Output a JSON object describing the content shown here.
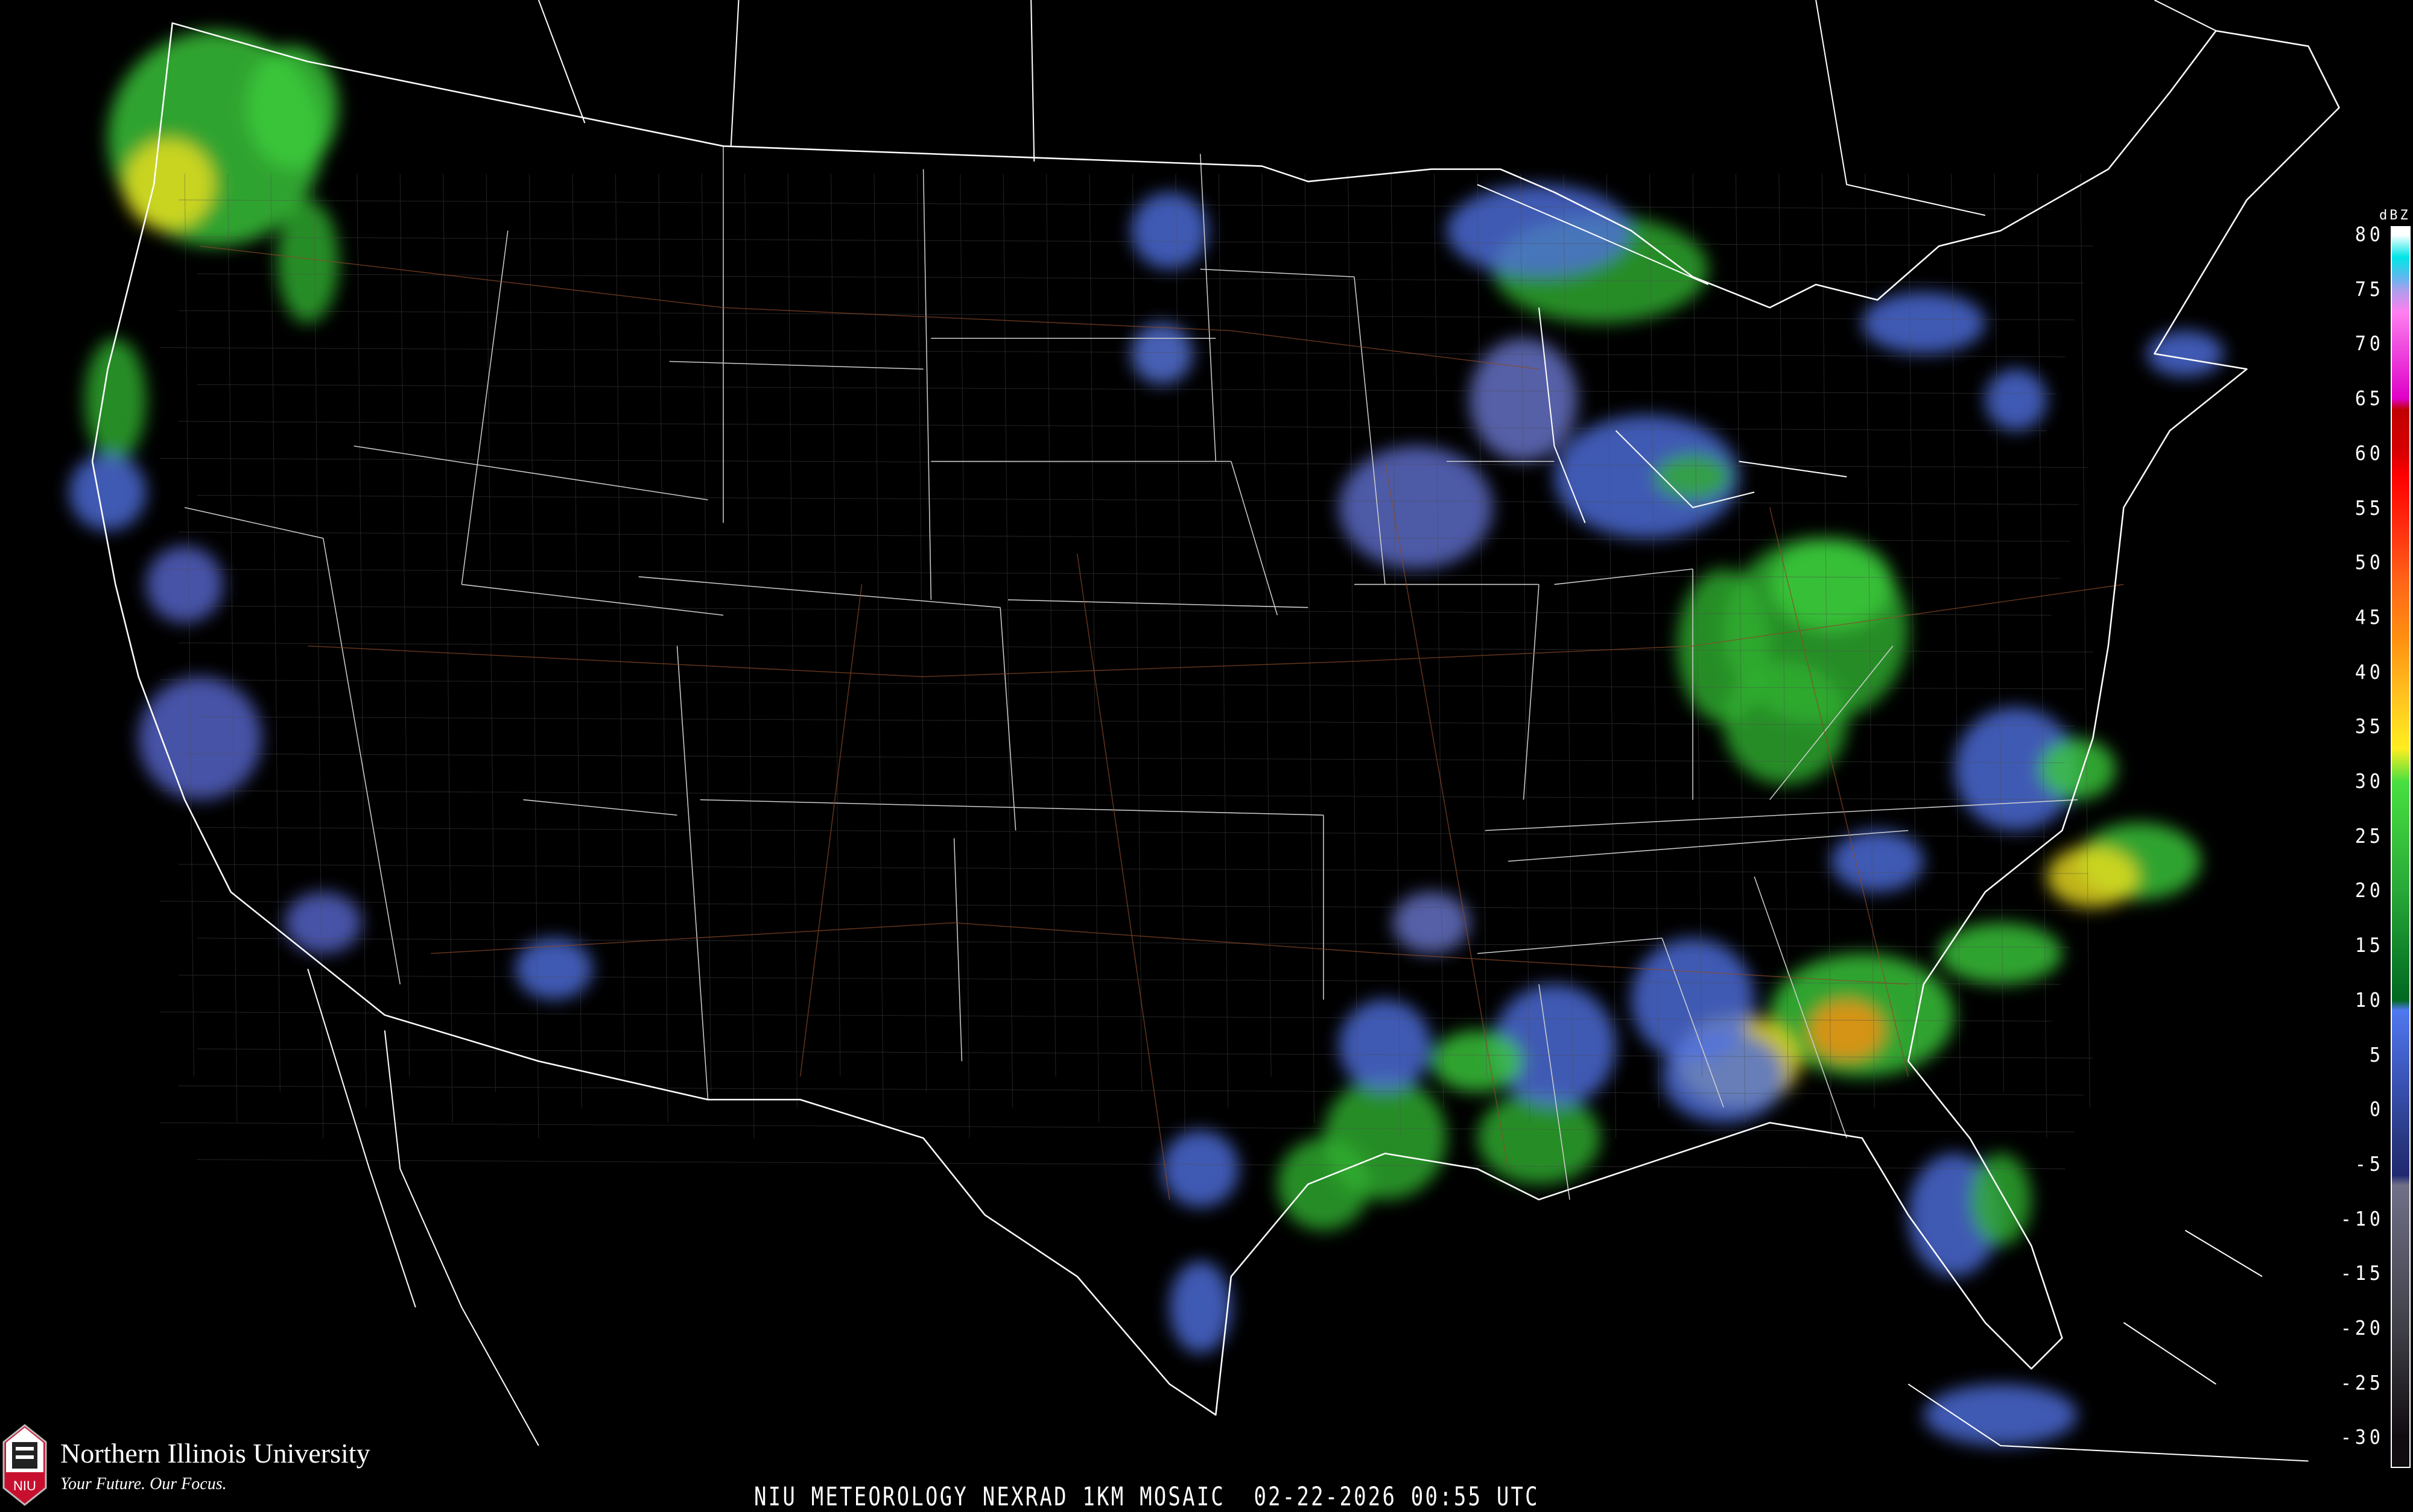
{
  "title": "NIU METEOROLOGY NEXRAD 1KM MOSAIC  02-22-2026 00:55 UTC",
  "logo": {
    "name": "Northern Illinois University",
    "tagline": "Your Future. Our Focus.",
    "mark": "NIU",
    "brand_color": "#c8102e"
  },
  "legend": {
    "unit": "dBZ",
    "labels": [
      "80",
      "75",
      "70",
      "65",
      "60",
      "55",
      "50",
      "45",
      "40",
      "35",
      "30",
      "25",
      "20",
      "15",
      "10",
      "5",
      "0",
      "-5",
      "-10",
      "-15",
      "-20",
      "-25",
      "-30"
    ],
    "range": [
      -30,
      80
    ],
    "colors": [
      {
        "dbz": 80,
        "color": "#ffffff"
      },
      {
        "dbz": 78,
        "color": "#00e6e6"
      },
      {
        "dbz": 76,
        "color": "#6ab4f0"
      },
      {
        "dbz": 75,
        "color": "#a8a0ec"
      },
      {
        "dbz": 73,
        "color": "#ff80f0"
      },
      {
        "dbz": 70,
        "color": "#f050e0"
      },
      {
        "dbz": 65,
        "color": "#e000c8"
      },
      {
        "dbz": 64,
        "color": "#c00000"
      },
      {
        "dbz": 60,
        "color": "#d80000"
      },
      {
        "dbz": 58,
        "color": "#ff0000"
      },
      {
        "dbz": 53,
        "color": "#ff3010"
      },
      {
        "dbz": 48,
        "color": "#ff6818"
      },
      {
        "dbz": 43,
        "color": "#ff9010"
      },
      {
        "dbz": 38,
        "color": "#ffc020"
      },
      {
        "dbz": 33,
        "color": "#ffee20"
      },
      {
        "dbz": 30,
        "color": "#48e040"
      },
      {
        "dbz": 20,
        "color": "#28a838"
      },
      {
        "dbz": 10,
        "color": "#006820"
      },
      {
        "dbz": 9,
        "color": "#5078f0"
      },
      {
        "dbz": 2,
        "color": "#3850b0"
      },
      {
        "dbz": -3,
        "color": "#283880"
      },
      {
        "dbz": -6,
        "color": "#202870"
      },
      {
        "dbz": -7,
        "color": "#707088"
      },
      {
        "dbz": -20,
        "color": "#404048"
      },
      {
        "dbz": -30,
        "color": "#100c10"
      }
    ]
  },
  "map": {
    "background": "#000000",
    "border_color": "#ffffff",
    "county_color": "#606060",
    "road_color": "#8b4a2a"
  }
}
